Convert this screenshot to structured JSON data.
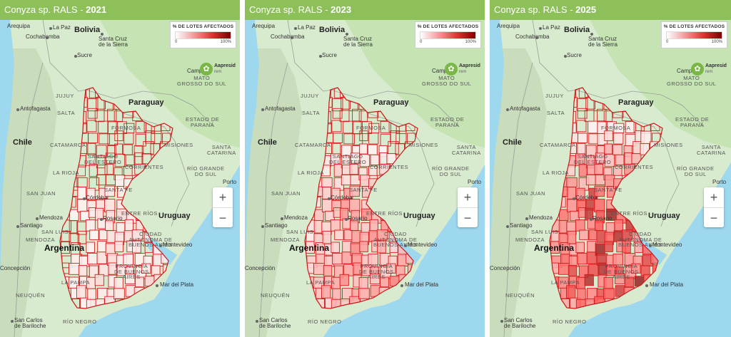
{
  "panels": [
    {
      "title_prefix": "Conyza sp. RALS - ",
      "year": "2021",
      "intensity": 0.15
    },
    {
      "title_prefix": "Conyza sp. RALS - ",
      "year": "2023",
      "intensity": 0.45
    },
    {
      "title_prefix": "Conyza sp. RALS - ",
      "year": "2025",
      "intensity": 0.8
    }
  ],
  "legend": {
    "title": "% DE LOTES AFECTADOS",
    "min": "0",
    "max": "100%",
    "colors": [
      "#ffffff",
      "#f29a9a",
      "#e33030",
      "#7d0000"
    ]
  },
  "logo": {
    "name": "Aapresid",
    "sub": "rem"
  },
  "zoom": {
    "in": "+",
    "out": "−"
  },
  "labels": {
    "la_paz": "La Paz",
    "arequipa": "Arequipa",
    "bolivia": "Bolivia",
    "cochabamba": "Cochabamba",
    "santa_cruz": "Santa Cruz\nde la Sierra",
    "sucre": "Sucre",
    "campo": "Campo",
    "mato_grosso": "MATO\nGROSSO DO SUL",
    "jujuy": "JUJUY",
    "salta": "SALTA",
    "antofagasta": "Antofagasta",
    "paraguay": "Paraguay",
    "estado_parana": "ESTADO DE\nPARANÁ",
    "formosa": "FORMOSA",
    "chile": "Chile",
    "catamarca": "CATAMARCA",
    "santiago_estero": "SANTIAGO\nDEL ESTERO",
    "misiones": "MISIONES",
    "santa_catarina": "SANTA\nCATARINA",
    "corrientes": "CORRIENTES",
    "rio_grande": "RÍO GRANDE\nDO SUL",
    "la_rioja": "LA RIOJA",
    "porto": "Porto",
    "san_juan": "SAN JUAN",
    "cordoba": "Córdoba",
    "santa_fe": "SANTA FE",
    "rosario": "Rosario",
    "entre_rios": "ENTRE RÍOS",
    "uruguay": "Uruguay",
    "mendoza_c": "Mendoza",
    "santiago": "Santiago",
    "san_luis": "SAN LUIS",
    "mendoza": "MENDOZA",
    "ciudad_ba": "CIUDAD\nAUTÓNOMA DE\nBUENOS AIRES",
    "argentina": "Argentina",
    "montevideo": "Montevideo",
    "provincia_ba": "PROVINCIA\nDE BUENOS\nAIRES",
    "concepcion": "Concepción",
    "la_pampa": "LA PAMPA",
    "mar_del_plata": "Mar del Plata",
    "neuquen": "NEUQUÉN",
    "rio_negro": "RÍO NEGRO",
    "bariloche": "San Carlos\nde Bariloche"
  }
}
